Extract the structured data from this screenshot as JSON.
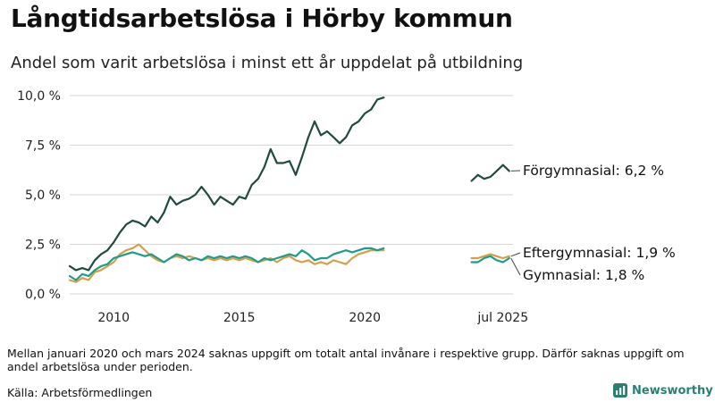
{
  "title": "Långtidsarbetslösa i Hörby kommun",
  "subtitle": "Andel som varit arbetslösa i minst ett år uppdelat på utbildning",
  "note": "Mellan januari 2020 och mars 2024 saknas uppgift om totalt antal invånare i respektive grupp. Därför saknas uppgift om andel arbetslösa under perioden.",
  "source": "Källa: Arbetsförmedlingen",
  "brand": {
    "name": "Newsworthy",
    "logo": "newsworthy-logo-icon"
  },
  "colors": {
    "forgymnasial": "#1e4a40",
    "gymnasial": "#22998a",
    "eftergymnasial": "#d2a04b",
    "grid": "#d6d6d6"
  },
  "chart_data": {
    "type": "line",
    "x_ticks": [
      2010,
      2015,
      2020,
      "jul 2025"
    ],
    "y_ticks": [
      "0,0 %",
      "2,5 %",
      "5,0 %",
      "7,5 %",
      "10,0 %"
    ],
    "ylim": [
      0,
      10
    ],
    "grid": true,
    "legend": "direct labels at line ends",
    "series": [
      {
        "name": "Förgymnasial",
        "end_label": "Förgymnasial: 6,2 %",
        "color": "#1e4a40",
        "segments": [
          [
            [
              2008.25,
              1.4
            ],
            [
              2008.5,
              1.2
            ],
            [
              2008.75,
              1.3
            ],
            [
              2009.0,
              1.2
            ],
            [
              2009.25,
              1.7
            ],
            [
              2009.5,
              2.0
            ],
            [
              2009.75,
              2.2
            ],
            [
              2010.0,
              2.6
            ],
            [
              2010.25,
              3.1
            ],
            [
              2010.5,
              3.5
            ],
            [
              2010.75,
              3.7
            ],
            [
              2011.0,
              3.6
            ],
            [
              2011.25,
              3.4
            ],
            [
              2011.5,
              3.9
            ],
            [
              2011.75,
              3.6
            ],
            [
              2012.0,
              4.1
            ],
            [
              2012.25,
              4.9
            ],
            [
              2012.5,
              4.5
            ],
            [
              2012.75,
              4.7
            ],
            [
              2013.0,
              4.8
            ],
            [
              2013.25,
              5.0
            ],
            [
              2013.5,
              5.4
            ],
            [
              2013.75,
              5.0
            ],
            [
              2014.0,
              4.5
            ],
            [
              2014.25,
              4.9
            ],
            [
              2014.5,
              4.7
            ],
            [
              2014.75,
              4.5
            ],
            [
              2015.0,
              4.9
            ],
            [
              2015.25,
              4.8
            ],
            [
              2015.5,
              5.5
            ],
            [
              2015.75,
              5.8
            ],
            [
              2016.0,
              6.4
            ],
            [
              2016.25,
              7.3
            ],
            [
              2016.5,
              6.6
            ],
            [
              2016.75,
              6.6
            ],
            [
              2017.0,
              6.7
            ],
            [
              2017.25,
              6.0
            ],
            [
              2017.5,
              6.9
            ],
            [
              2017.75,
              7.9
            ],
            [
              2018.0,
              8.7
            ],
            [
              2018.25,
              8.0
            ],
            [
              2018.5,
              8.2
            ],
            [
              2018.75,
              7.9
            ],
            [
              2019.0,
              7.6
            ],
            [
              2019.25,
              7.9
            ],
            [
              2019.5,
              8.5
            ],
            [
              2019.75,
              8.7
            ],
            [
              2020.0,
              9.1
            ],
            [
              2020.25,
              9.3
            ],
            [
              2020.5,
              9.8
            ],
            [
              2020.75,
              9.9
            ]
          ],
          [
            [
              2024.25,
              5.7
            ],
            [
              2024.5,
              6.0
            ],
            [
              2024.75,
              5.8
            ],
            [
              2025.0,
              5.9
            ],
            [
              2025.25,
              6.2
            ],
            [
              2025.5,
              6.5
            ],
            [
              2025.75,
              6.2
            ]
          ]
        ]
      },
      {
        "name": "Eftergymnasial",
        "end_label": "Eftergymnasial: 1,9 %",
        "color": "#d2a04b",
        "segments": [
          [
            [
              2008.25,
              0.7
            ],
            [
              2008.5,
              0.6
            ],
            [
              2008.75,
              0.8
            ],
            [
              2009.0,
              0.7
            ],
            [
              2009.25,
              1.1
            ],
            [
              2009.5,
              1.2
            ],
            [
              2009.75,
              1.4
            ],
            [
              2010.0,
              1.6
            ],
            [
              2010.25,
              2.0
            ],
            [
              2010.5,
              2.2
            ],
            [
              2010.75,
              2.3
            ],
            [
              2011.0,
              2.5
            ],
            [
              2011.25,
              2.2
            ],
            [
              2011.5,
              1.9
            ],
            [
              2011.75,
              1.7
            ],
            [
              2012.0,
              1.6
            ],
            [
              2012.25,
              1.8
            ],
            [
              2012.5,
              1.9
            ],
            [
              2012.75,
              1.8
            ],
            [
              2013.0,
              1.9
            ],
            [
              2013.25,
              1.8
            ],
            [
              2013.5,
              1.7
            ],
            [
              2013.75,
              1.8
            ],
            [
              2014.0,
              1.7
            ],
            [
              2014.25,
              1.8
            ],
            [
              2014.5,
              1.7
            ],
            [
              2014.75,
              1.8
            ],
            [
              2015.0,
              1.7
            ],
            [
              2015.25,
              1.8
            ],
            [
              2015.5,
              1.7
            ],
            [
              2015.75,
              1.6
            ],
            [
              2016.0,
              1.7
            ],
            [
              2016.25,
              1.8
            ],
            [
              2016.5,
              1.6
            ],
            [
              2016.75,
              1.8
            ],
            [
              2017.0,
              1.9
            ],
            [
              2017.25,
              1.7
            ],
            [
              2017.5,
              1.6
            ],
            [
              2017.75,
              1.7
            ],
            [
              2018.0,
              1.5
            ],
            [
              2018.25,
              1.6
            ],
            [
              2018.5,
              1.5
            ],
            [
              2018.75,
              1.7
            ],
            [
              2019.0,
              1.6
            ],
            [
              2019.25,
              1.5
            ],
            [
              2019.5,
              1.8
            ],
            [
              2019.75,
              2.0
            ],
            [
              2020.0,
              2.1
            ],
            [
              2020.25,
              2.2
            ],
            [
              2020.5,
              2.2
            ],
            [
              2020.75,
              2.2
            ]
          ],
          [
            [
              2024.25,
              1.8
            ],
            [
              2024.5,
              1.8
            ],
            [
              2024.75,
              1.9
            ],
            [
              2025.0,
              2.0
            ],
            [
              2025.25,
              1.9
            ],
            [
              2025.5,
              1.8
            ],
            [
              2025.75,
              1.9
            ]
          ]
        ]
      },
      {
        "name": "Gymnasial",
        "end_label": "Gymnasial: 1,8 %",
        "color": "#22998a",
        "segments": [
          [
            [
              2008.25,
              0.9
            ],
            [
              2008.5,
              0.7
            ],
            [
              2008.75,
              1.0
            ],
            [
              2009.0,
              0.9
            ],
            [
              2009.25,
              1.2
            ],
            [
              2009.5,
              1.4
            ],
            [
              2009.75,
              1.5
            ],
            [
              2010.0,
              1.8
            ],
            [
              2010.25,
              1.9
            ],
            [
              2010.5,
              2.0
            ],
            [
              2010.75,
              2.1
            ],
            [
              2011.0,
              2.0
            ],
            [
              2011.25,
              1.9
            ],
            [
              2011.5,
              2.0
            ],
            [
              2011.75,
              1.8
            ],
            [
              2012.0,
              1.6
            ],
            [
              2012.25,
              1.8
            ],
            [
              2012.5,
              2.0
            ],
            [
              2012.75,
              1.9
            ],
            [
              2013.0,
              1.7
            ],
            [
              2013.25,
              1.8
            ],
            [
              2013.5,
              1.7
            ],
            [
              2013.75,
              1.9
            ],
            [
              2014.0,
              1.8
            ],
            [
              2014.25,
              1.9
            ],
            [
              2014.5,
              1.8
            ],
            [
              2014.75,
              1.9
            ],
            [
              2015.0,
              1.8
            ],
            [
              2015.25,
              1.9
            ],
            [
              2015.5,
              1.8
            ],
            [
              2015.75,
              1.6
            ],
            [
              2016.0,
              1.8
            ],
            [
              2016.25,
              1.7
            ],
            [
              2016.5,
              1.8
            ],
            [
              2016.75,
              1.9
            ],
            [
              2017.0,
              2.0
            ],
            [
              2017.25,
              1.9
            ],
            [
              2017.5,
              2.2
            ],
            [
              2017.75,
              2.0
            ],
            [
              2018.0,
              1.7
            ],
            [
              2018.25,
              1.8
            ],
            [
              2018.5,
              1.8
            ],
            [
              2018.75,
              2.0
            ],
            [
              2019.0,
              2.1
            ],
            [
              2019.25,
              2.2
            ],
            [
              2019.5,
              2.1
            ],
            [
              2019.75,
              2.2
            ],
            [
              2020.0,
              2.3
            ],
            [
              2020.25,
              2.3
            ],
            [
              2020.5,
              2.2
            ],
            [
              2020.75,
              2.3
            ]
          ],
          [
            [
              2024.25,
              1.6
            ],
            [
              2024.5,
              1.6
            ],
            [
              2024.75,
              1.8
            ],
            [
              2025.0,
              1.9
            ],
            [
              2025.25,
              1.7
            ],
            [
              2025.5,
              1.6
            ],
            [
              2025.75,
              1.8
            ]
          ]
        ]
      }
    ]
  }
}
